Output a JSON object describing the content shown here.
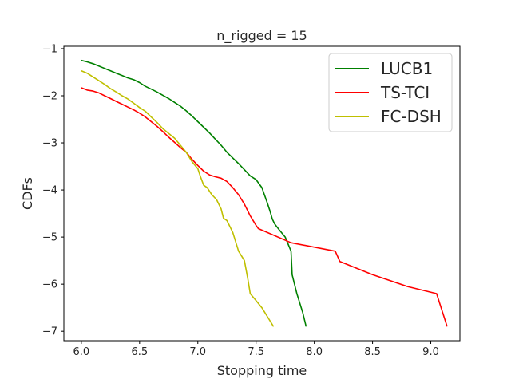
{
  "chart_data": {
    "type": "line",
    "title": "n_rigged = 15",
    "xlabel": "Stopping time",
    "ylabel": "CDFs",
    "xlim": [
      5.85,
      9.25
    ],
    "ylim": [
      -7.2,
      -0.95
    ],
    "xticks": [
      "6.0",
      "6.5",
      "7.0",
      "7.5",
      "8.0",
      "8.5",
      "9.0"
    ],
    "yticks": [
      "−1",
      "−2",
      "−3",
      "−4",
      "−5",
      "−6",
      "−7"
    ],
    "grid": false,
    "legend_position": "top-right",
    "series": [
      {
        "name": "LUCB1",
        "color": "#008000",
        "x": [
          6.0,
          6.05,
          6.1,
          6.15,
          6.2,
          6.25,
          6.3,
          6.35,
          6.4,
          6.45,
          6.5,
          6.55,
          6.6,
          6.65,
          6.7,
          6.75,
          6.8,
          6.85,
          6.9,
          6.95,
          7.0,
          7.05,
          7.1,
          7.15,
          7.2,
          7.25,
          7.3,
          7.35,
          7.4,
          7.45,
          7.5,
          7.55,
          7.6,
          7.62,
          7.64,
          7.66,
          7.7,
          7.75,
          7.8,
          7.81,
          7.85,
          7.9,
          7.93
        ],
        "y": [
          -1.25,
          -1.28,
          -1.32,
          -1.37,
          -1.42,
          -1.47,
          -1.52,
          -1.57,
          -1.62,
          -1.66,
          -1.72,
          -1.8,
          -1.86,
          -1.92,
          -1.99,
          -2.06,
          -2.14,
          -2.22,
          -2.32,
          -2.43,
          -2.55,
          -2.67,
          -2.79,
          -2.92,
          -3.05,
          -3.2,
          -3.32,
          -3.44,
          -3.57,
          -3.7,
          -3.78,
          -3.95,
          -4.3,
          -4.45,
          -4.62,
          -4.72,
          -4.85,
          -5.0,
          -5.3,
          -5.8,
          -6.2,
          -6.6,
          -6.9
        ]
      },
      {
        "name": "TS-TCI",
        "color": "#ff0000",
        "x": [
          6.0,
          6.05,
          6.1,
          6.15,
          6.2,
          6.25,
          6.3,
          6.35,
          6.4,
          6.45,
          6.5,
          6.55,
          6.6,
          6.65,
          6.7,
          6.75,
          6.8,
          6.85,
          6.9,
          6.95,
          7.0,
          7.05,
          7.1,
          7.15,
          7.2,
          7.25,
          7.3,
          7.35,
          7.4,
          7.45,
          7.5,
          7.52,
          7.8,
          8.18,
          8.22,
          8.5,
          8.8,
          9.05,
          9.14
        ],
        "y": [
          -1.83,
          -1.88,
          -1.9,
          -1.94,
          -2.0,
          -2.06,
          -2.12,
          -2.18,
          -2.24,
          -2.3,
          -2.37,
          -2.45,
          -2.55,
          -2.65,
          -2.76,
          -2.88,
          -2.99,
          -3.1,
          -3.2,
          -3.35,
          -3.48,
          -3.6,
          -3.68,
          -3.72,
          -3.75,
          -3.82,
          -3.95,
          -4.1,
          -4.3,
          -4.55,
          -4.75,
          -4.82,
          -5.12,
          -5.3,
          -5.52,
          -5.8,
          -6.05,
          -6.2,
          -6.9
        ]
      },
      {
        "name": "FC-DSH",
        "color": "#bfbf00",
        "x": [
          6.0,
          6.05,
          6.1,
          6.15,
          6.2,
          6.25,
          6.3,
          6.35,
          6.4,
          6.45,
          6.5,
          6.55,
          6.6,
          6.65,
          6.7,
          6.75,
          6.8,
          6.85,
          6.9,
          6.95,
          7.0,
          7.02,
          7.05,
          7.08,
          7.12,
          7.16,
          7.2,
          7.22,
          7.25,
          7.3,
          7.35,
          7.4,
          7.43,
          7.45,
          7.5,
          7.55,
          7.6,
          7.65
        ],
        "y": [
          -1.47,
          -1.52,
          -1.6,
          -1.68,
          -1.76,
          -1.85,
          -1.92,
          -2.0,
          -2.07,
          -2.16,
          -2.25,
          -2.33,
          -2.45,
          -2.57,
          -2.7,
          -2.8,
          -2.9,
          -3.05,
          -3.2,
          -3.4,
          -3.55,
          -3.7,
          -3.9,
          -3.95,
          -4.1,
          -4.2,
          -4.4,
          -4.6,
          -4.65,
          -4.9,
          -5.3,
          -5.5,
          -5.9,
          -6.2,
          -6.35,
          -6.5,
          -6.7,
          -6.9
        ]
      }
    ]
  }
}
